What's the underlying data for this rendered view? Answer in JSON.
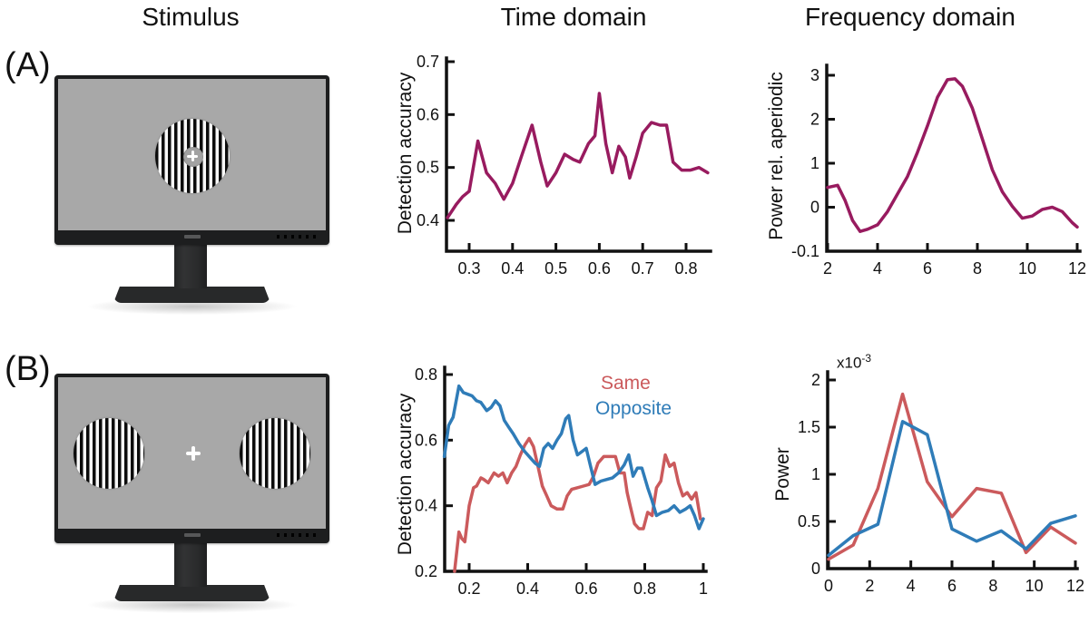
{
  "figure": {
    "headers": [
      {
        "label": "Stimulus"
      },
      {
        "label": "Time domain"
      },
      {
        "label": "Frequency domain"
      }
    ],
    "panel_labels": [
      {
        "label": "(A)"
      },
      {
        "label": "(B)"
      }
    ]
  },
  "colors": {
    "magenta": "#981b5f",
    "same_red": "#cb5a5c",
    "opposite_blue": "#2f7cb8",
    "axis": "#111111",
    "screen_gray": "#a8a8a8",
    "bezel_dark": "#1d1e1f"
  },
  "chart_data": [
    {
      "id": "a_time",
      "type": "line",
      "title": "Time domain",
      "xlabel": "",
      "ylabel": "Detection accuracy",
      "xlim": [
        0.25,
        0.85
      ],
      "ylim": [
        0.34,
        0.71
      ],
      "grid": false,
      "xtick_labels": [
        "0.3",
        "0.4",
        "0.5",
        "0.6",
        "0.7",
        "0.8"
      ],
      "xticks": [
        0.3,
        0.4,
        0.5,
        0.6,
        0.7,
        0.8
      ],
      "ytick_labels": [
        "0.4",
        "0.5",
        "0.6",
        "0.7"
      ],
      "ytick_values": [
        0.4,
        0.5,
        0.6,
        0.7
      ],
      "series": [
        {
          "name": "",
          "color": "#981b5f",
          "x": [
            0.25,
            0.27,
            0.285,
            0.3,
            0.32,
            0.34,
            0.36,
            0.38,
            0.4,
            0.42,
            0.445,
            0.465,
            0.48,
            0.5,
            0.52,
            0.54,
            0.555,
            0.575,
            0.59,
            0.6,
            0.615,
            0.63,
            0.645,
            0.66,
            0.67,
            0.685,
            0.7,
            0.72,
            0.74,
            0.755,
            0.77,
            0.79,
            0.81,
            0.83,
            0.85
          ],
          "y": [
            0.405,
            0.43,
            0.445,
            0.455,
            0.55,
            0.49,
            0.47,
            0.44,
            0.47,
            0.52,
            0.58,
            0.51,
            0.465,
            0.49,
            0.525,
            0.515,
            0.51,
            0.545,
            0.56,
            0.64,
            0.545,
            0.49,
            0.54,
            0.52,
            0.48,
            0.52,
            0.565,
            0.585,
            0.58,
            0.58,
            0.51,
            0.495,
            0.495,
            0.5,
            0.49
          ]
        }
      ]
    },
    {
      "id": "a_freq",
      "type": "line",
      "title": "Frequency domain",
      "xlabel": "",
      "ylabel": "Power rel. aperiodic",
      "xlim": [
        2,
        12
      ],
      "ylim": [
        -0.1,
        3
      ],
      "y_scale": "equal-tick-spacing",
      "grid": false,
      "xtick_labels": [
        "2",
        "4",
        "6",
        "8",
        "10",
        "12"
      ],
      "xticks": [
        2,
        4,
        6,
        8,
        10,
        12
      ],
      "ytick_labels": [
        "-0.1",
        "0",
        "1",
        "2",
        "3"
      ],
      "ytick_values": [
        -0.1,
        0,
        1,
        2,
        3
      ],
      "series": [
        {
          "name": "",
          "color": "#981b5f",
          "x": [
            2,
            2.4,
            2.7,
            3.0,
            3.3,
            3.6,
            4.0,
            4.4,
            4.8,
            5.2,
            5.6,
            6.0,
            6.4,
            6.8,
            7.1,
            7.4,
            7.8,
            8.2,
            8.6,
            9.0,
            9.4,
            9.8,
            10.2,
            10.6,
            11.0,
            11.4,
            11.8,
            12.0
          ],
          "y": [
            0.45,
            0.5,
            0.15,
            -0.03,
            -0.055,
            -0.05,
            -0.04,
            -0.01,
            0.3,
            0.7,
            1.25,
            1.85,
            2.5,
            2.9,
            2.92,
            2.75,
            2.25,
            1.55,
            0.85,
            0.35,
            0.02,
            -0.025,
            -0.02,
            -0.005,
            0.0,
            -0.01,
            -0.035,
            -0.045
          ]
        }
      ]
    },
    {
      "id": "b_time",
      "type": "line",
      "title": "Time domain",
      "xlabel": "",
      "ylabel": "Detection accuracy",
      "xlim": [
        0.11,
        1.0
      ],
      "ylim": [
        0.2,
        0.81
      ],
      "grid": false,
      "legend_position": "top-right",
      "xtick_labels": [
        "0.2",
        "0.4",
        "0.6",
        "0.8",
        "1"
      ],
      "xticks": [
        0.2,
        0.4,
        0.6,
        0.8,
        1.0
      ],
      "ytick_labels": [
        "0.2",
        "0.4",
        "0.6",
        "0.8"
      ],
      "ytick_values": [
        0.2,
        0.4,
        0.6,
        0.8
      ],
      "series": [
        {
          "name": "Same",
          "color": "#cb5a5c",
          "x": [
            0.15,
            0.165,
            0.175,
            0.185,
            0.2,
            0.215,
            0.225,
            0.24,
            0.25,
            0.265,
            0.285,
            0.3,
            0.315,
            0.33,
            0.345,
            0.36,
            0.375,
            0.39,
            0.405,
            0.42,
            0.435,
            0.45,
            0.465,
            0.48,
            0.5,
            0.52,
            0.535,
            0.55,
            0.57,
            0.59,
            0.61,
            0.625,
            0.64,
            0.66,
            0.68,
            0.7,
            0.715,
            0.73,
            0.74,
            0.75,
            0.765,
            0.78,
            0.795,
            0.81,
            0.825,
            0.84,
            0.855,
            0.87,
            0.885,
            0.9,
            0.915,
            0.93,
            0.945,
            0.96,
            0.975,
            0.99
          ],
          "y": [
            0.2,
            0.32,
            0.3,
            0.29,
            0.4,
            0.455,
            0.46,
            0.485,
            0.48,
            0.47,
            0.5,
            0.49,
            0.5,
            0.47,
            0.5,
            0.52,
            0.555,
            0.585,
            0.605,
            0.58,
            0.52,
            0.46,
            0.43,
            0.4,
            0.39,
            0.39,
            0.43,
            0.45,
            0.455,
            0.46,
            0.465,
            0.49,
            0.53,
            0.55,
            0.55,
            0.55,
            0.5,
            0.5,
            0.44,
            0.4,
            0.345,
            0.33,
            0.33,
            0.38,
            0.37,
            0.455,
            0.475,
            0.555,
            0.52,
            0.53,
            0.47,
            0.43,
            0.44,
            0.42,
            0.44,
            0.36
          ]
        },
        {
          "name": "Opposite",
          "color": "#2f7cb8",
          "x": [
            0.115,
            0.13,
            0.145,
            0.165,
            0.18,
            0.195,
            0.21,
            0.225,
            0.24,
            0.26,
            0.275,
            0.29,
            0.305,
            0.32,
            0.335,
            0.35,
            0.37,
            0.39,
            0.41,
            0.425,
            0.44,
            0.455,
            0.47,
            0.485,
            0.5,
            0.515,
            0.53,
            0.54,
            0.555,
            0.57,
            0.585,
            0.6,
            0.615,
            0.63,
            0.65,
            0.67,
            0.69,
            0.71,
            0.73,
            0.745,
            0.76,
            0.775,
            0.79,
            0.81,
            0.825,
            0.84,
            0.86,
            0.88,
            0.9,
            0.92,
            0.94,
            0.955,
            0.97,
            0.985,
            1.0
          ],
          "y": [
            0.55,
            0.645,
            0.67,
            0.765,
            0.745,
            0.74,
            0.735,
            0.72,
            0.715,
            0.69,
            0.7,
            0.72,
            0.705,
            0.66,
            0.64,
            0.62,
            0.59,
            0.565,
            0.545,
            0.53,
            0.52,
            0.575,
            0.59,
            0.575,
            0.6,
            0.62,
            0.665,
            0.675,
            0.6,
            0.555,
            0.565,
            0.575,
            0.52,
            0.465,
            0.475,
            0.48,
            0.485,
            0.5,
            0.525,
            0.555,
            0.49,
            0.515,
            0.515,
            0.455,
            0.415,
            0.37,
            0.38,
            0.385,
            0.4,
            0.38,
            0.39,
            0.4,
            0.37,
            0.33,
            0.36
          ]
        }
      ]
    },
    {
      "id": "b_freq",
      "type": "line",
      "title": "Frequency domain",
      "xlabel": "",
      "ylabel": "Power",
      "exponent": {
        "base": "x10",
        "sup": "-3"
      },
      "xlim": [
        0,
        12
      ],
      "ylim": [
        0,
        2.05
      ],
      "grid": false,
      "xtick_labels": [
        "0",
        "2",
        "4",
        "6",
        "8",
        "10",
        "12"
      ],
      "xticks": [
        0,
        2,
        4,
        6,
        8,
        10,
        12
      ],
      "ytick_labels": [
        "0",
        "0.5",
        "1",
        "1.5",
        "2"
      ],
      "ytick_values": [
        0,
        0.5,
        1,
        1.5,
        2
      ],
      "series": [
        {
          "name": "Same",
          "color": "#cb5a5c",
          "x": [
            0,
            1.2,
            2.4,
            3.6,
            4.8,
            6,
            7.2,
            8.4,
            9.6,
            10.8,
            12
          ],
          "y": [
            0.1,
            0.25,
            0.85,
            1.85,
            0.92,
            0.55,
            0.85,
            0.8,
            0.17,
            0.44,
            0.27
          ]
        },
        {
          "name": "Opposite",
          "color": "#2f7cb8",
          "x": [
            0,
            1.2,
            2.4,
            3.6,
            4.8,
            6,
            7.2,
            8.4,
            9.6,
            10.8,
            12
          ],
          "y": [
            0.14,
            0.35,
            0.47,
            1.56,
            1.42,
            0.42,
            0.29,
            0.4,
            0.21,
            0.48,
            0.56
          ]
        }
      ]
    }
  ]
}
